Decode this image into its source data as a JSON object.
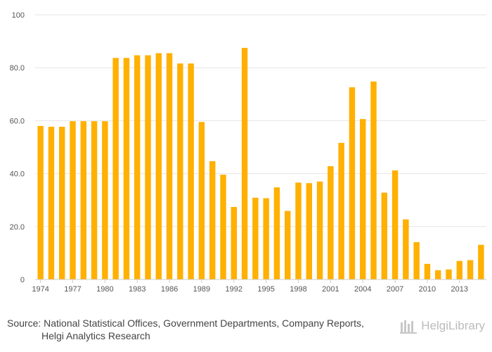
{
  "chart_data": {
    "type": "bar",
    "title": "",
    "xlabel": "",
    "ylabel": "",
    "ylim": [
      0,
      100
    ],
    "yticks": [
      0,
      20.0,
      40.0,
      60.0,
      80.0,
      100
    ],
    "ytick_labels": [
      "0",
      "20.0",
      "40.0",
      "60.0",
      "80.0",
      "100"
    ],
    "xtick_labels": [
      "1974",
      "1977",
      "1980",
      "1983",
      "1986",
      "1989",
      "1992",
      "1995",
      "1998",
      "2001",
      "2004",
      "2007",
      "2010",
      "2013"
    ],
    "grid": true,
    "bar_color": "#FFB000",
    "categories": [
      1974,
      1975,
      1976,
      1977,
      1978,
      1979,
      1980,
      1981,
      1982,
      1983,
      1984,
      1985,
      1986,
      1987,
      1988,
      1989,
      1990,
      1991,
      1992,
      1993,
      1994,
      1995,
      1996,
      1997,
      1998,
      1999,
      2000,
      2001,
      2002,
      2003,
      2004,
      2005,
      2006,
      2007,
      2008,
      2009,
      2010,
      2011,
      2012,
      2013,
      2014,
      2015
    ],
    "values": [
      58.0,
      57.7,
      57.7,
      59.8,
      59.8,
      59.8,
      59.8,
      83.7,
      83.7,
      84.7,
      84.7,
      85.5,
      85.5,
      81.6,
      81.6,
      59.5,
      44.7,
      39.6,
      27.4,
      87.5,
      30.9,
      30.7,
      34.8,
      25.9,
      36.6,
      36.4,
      37.0,
      42.8,
      51.6,
      72.6,
      60.6,
      74.8,
      32.8,
      41.2,
      22.7,
      14.1,
      5.9,
      3.5,
      3.8,
      7.0,
      7.3,
      13.1
    ]
  },
  "footer": {
    "source_line1": "Source: National Statistical Offices, Government Departments, Company Reports,",
    "source_line2": "Helgi Analytics Research",
    "brand": "HelgiLibrary"
  }
}
